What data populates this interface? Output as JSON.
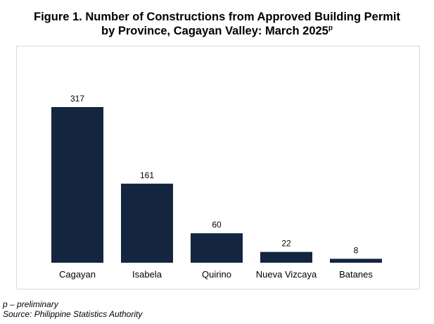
{
  "title": {
    "line1": "Figure 1. Number of Constructions from Approved Building Permit",
    "line2": "by Province, Cagayan Valley: March 2025",
    "superscript": "p"
  },
  "chart_data": {
    "type": "bar",
    "categories": [
      "Cagayan",
      "Isabela",
      "Quirino",
      "Nueva Vizcaya",
      "Batanes"
    ],
    "values": [
      317,
      161,
      60,
      22,
      8
    ],
    "data_labels": true,
    "bar_color": "#13253f",
    "xlabel": "",
    "ylabel": "",
    "ylim": [
      0,
      350
    ],
    "grid": false,
    "legend": "none"
  },
  "footnotes": {
    "preliminary": "p – preliminary",
    "source": "Source: Philippine Statistics Authority"
  }
}
